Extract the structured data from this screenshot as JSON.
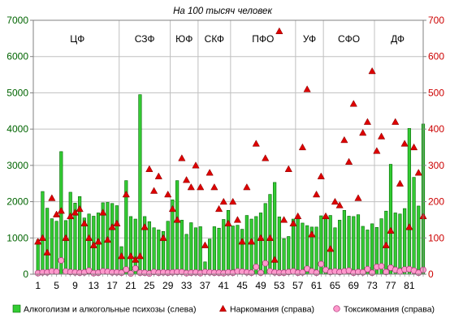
{
  "chart_data": {
    "type": "bar",
    "title": "На 100 тысяч человек",
    "x_tick_labels": [
      "1",
      "5",
      "9",
      "13",
      "17",
      "21",
      "25",
      "29",
      "33",
      "37",
      "41",
      "45",
      "49",
      "53",
      "57",
      "61",
      "65",
      "69",
      "73",
      "77",
      "81"
    ],
    "x_tick_positions": [
      1,
      5,
      9,
      13,
      17,
      21,
      25,
      29,
      33,
      37,
      41,
      45,
      49,
      53,
      57,
      61,
      65,
      69,
      73,
      77,
      81
    ],
    "x_range": [
      0,
      84
    ],
    "y_left": {
      "ylim": [
        0,
        7000
      ],
      "ticks": [
        0,
        1000,
        2000,
        3000,
        4000,
        5000,
        6000,
        7000
      ],
      "color": "#006400"
    },
    "y_right": {
      "ylim": [
        0,
        700
      ],
      "ticks": [
        0,
        100,
        200,
        300,
        400,
        500,
        600,
        700
      ],
      "color": "#cc0000"
    },
    "regions": [
      {
        "label": "ЦФ",
        "start": 0.5,
        "end": 18.5
      },
      {
        "label": "СЗФ",
        "start": 18.5,
        "end": 29.5
      },
      {
        "label": "ЮФ",
        "start": 29.5,
        "end": 35.5
      },
      {
        "label": "СКФ",
        "start": 35.5,
        "end": 42.5
      },
      {
        "label": "ПФО",
        "start": 42.5,
        "end": 56.5
      },
      {
        "label": "УФ",
        "start": 56.5,
        "end": 62.5
      },
      {
        "label": "СФО",
        "start": 62.5,
        "end": 73.5
      },
      {
        "label": "ДФ",
        "start": 73.5,
        "end": 83.5
      }
    ],
    "series": [
      {
        "name": "Алкоголизм и алкогольные психозы (слева)",
        "kind": "bar",
        "axis": "left",
        "color": "#33cc33",
        "stroke": "#006600",
        "values": [
          950,
          2280,
          1820,
          1530,
          1460,
          3380,
          1480,
          2260,
          1960,
          2140,
          1550,
          1660,
          1600,
          1690,
          1970,
          1980,
          1950,
          1890,
          760,
          2580,
          1590,
          1520,
          4950,
          1590,
          1450,
          1280,
          1220,
          1180,
          1460,
          2050,
          2580,
          1490,
          1100,
          1420,
          1280,
          1310,
          340,
          970,
          1310,
          1270,
          1510,
          1760,
          1330,
          1350,
          1240,
          1620,
          1520,
          1590,
          1690,
          1950,
          2200,
          2530,
          1580,
          980,
          1040,
          1520,
          1550,
          1410,
          1340,
          1300,
          1300,
          1610,
          1580,
          1620,
          1280,
          1490,
          1760,
          1600,
          1590,
          1640,
          1320,
          1220,
          1390,
          1290,
          1530,
          1740,
          3030,
          1690,
          1660,
          1810,
          4020,
          2670,
          1880,
          4140
        ]
      },
      {
        "name": "Наркомания (справа)",
        "kind": "scatter",
        "axis": "right",
        "marker": "triangle",
        "color": "#dd0000",
        "values": [
          90,
          100,
          60,
          210,
          165,
          175,
          100,
          160,
          170,
          180,
          140,
          100,
          80,
          90,
          170,
          95,
          130,
          140,
          50,
          220,
          50,
          40,
          50,
          130,
          290,
          230,
          270,
          100,
          220,
          180,
          150,
          320,
          260,
          240,
          300,
          240,
          80,
          280,
          240,
          180,
          200,
          140,
          200,
          150,
          90,
          240,
          90,
          360,
          100,
          320,
          100,
          40,
          670,
          150,
          290,
          140,
          160,
          350,
          510,
          110,
          220,
          270,
          160,
          70,
          200,
          190,
          370,
          310,
          470,
          210,
          390,
          420,
          560,
          340,
          380,
          80,
          120,
          420,
          250,
          360,
          130,
          350,
          280,
          160
        ]
      },
      {
        "name": "Токсикомания (справа)",
        "kind": "scatter",
        "axis": "right",
        "marker": "circle",
        "color": "#ff99cc",
        "stroke": "#aa3377",
        "values": [
          3,
          5,
          5,
          8,
          7,
          38,
          8,
          6,
          5,
          4,
          5,
          10,
          3,
          4,
          8,
          7,
          5,
          5,
          4,
          13,
          2,
          16,
          4,
          4,
          2,
          6,
          4,
          5,
          4,
          5,
          6,
          6,
          3,
          4,
          5,
          3,
          6,
          5,
          4,
          4,
          3,
          5,
          4,
          8,
          7,
          5,
          4,
          20,
          4,
          30,
          8,
          5,
          4,
          4,
          6,
          8,
          4,
          5,
          15,
          8,
          4,
          28,
          12,
          6,
          8,
          6,
          8,
          10,
          4,
          6,
          5,
          14,
          4,
          20,
          22,
          6,
          18,
          12,
          8,
          13,
          14,
          10,
          4,
          12
        ]
      }
    ],
    "legend": {
      "placement": "bottom"
    },
    "grid": true
  }
}
